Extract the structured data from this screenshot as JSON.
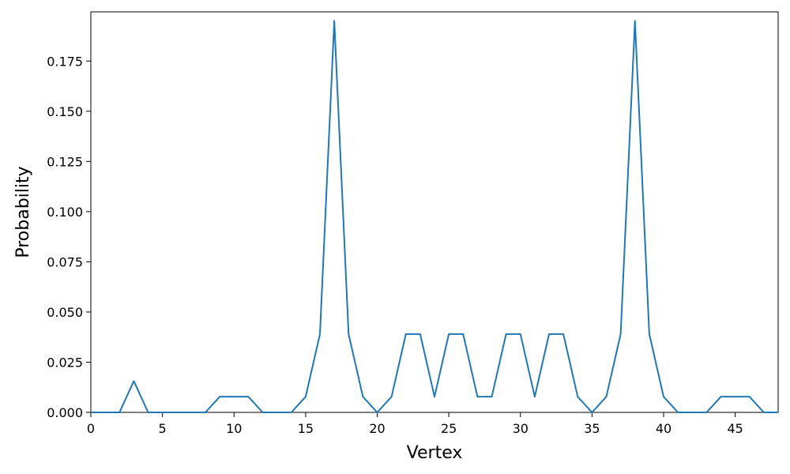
{
  "chart_data": {
    "type": "line",
    "title": "",
    "xlabel": "Vertex",
    "ylabel": "Probability",
    "xlim": [
      0,
      48
    ],
    "ylim": [
      0,
      0.1995
    ],
    "grid": false,
    "xticks": [
      0,
      5,
      10,
      15,
      20,
      25,
      30,
      35,
      40,
      45
    ],
    "xtick_labels": [
      "0",
      "5",
      "10",
      "15",
      "20",
      "25",
      "30",
      "35",
      "40",
      "45"
    ],
    "yticks": [
      0.0,
      0.025,
      0.05,
      0.075,
      0.1,
      0.125,
      0.15,
      0.175
    ],
    "ytick_labels": [
      "0.000",
      "0.025",
      "0.050",
      "0.075",
      "0.100",
      "0.125",
      "0.150",
      "0.175"
    ],
    "series": [
      {
        "color": "#1f77b4",
        "x": [
          0,
          1,
          2,
          3,
          4,
          5,
          6,
          7,
          8,
          9,
          10,
          11,
          12,
          13,
          14,
          15,
          16,
          17,
          18,
          19,
          20,
          21,
          22,
          23,
          24,
          25,
          26,
          27,
          28,
          29,
          30,
          31,
          32,
          33,
          34,
          35,
          36,
          37,
          38,
          39,
          40,
          41,
          42,
          43,
          44,
          45,
          46,
          47,
          48
        ],
        "y": [
          0,
          0,
          0,
          0.0156,
          0,
          0,
          0,
          0,
          0,
          0.0078,
          0.0078,
          0.0078,
          0,
          0,
          0,
          0.0078,
          0.039,
          0.195,
          0.039,
          0.0078,
          0,
          0.0078,
          0.039,
          0.039,
          0.0078,
          0.039,
          0.039,
          0.0078,
          0.0078,
          0.039,
          0.039,
          0.0078,
          0.039,
          0.039,
          0.0078,
          0,
          0.0078,
          0.039,
          0.195,
          0.039,
          0.0078,
          0,
          0,
          0,
          0.0078,
          0.0078,
          0.0078,
          0,
          0
        ]
      }
    ]
  }
}
